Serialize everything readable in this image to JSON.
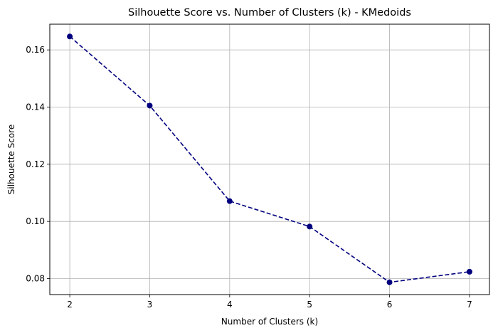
{
  "chart_data": {
    "type": "line",
    "title": "Silhouette Score vs. Number of Clusters (k) - KMedoids",
    "xlabel": "Number of Clusters (k)",
    "ylabel": "Silhouette Score",
    "x": [
      2,
      3,
      4,
      5,
      6,
      7
    ],
    "x_ticks": [
      "2",
      "3",
      "4",
      "5",
      "6",
      "7"
    ],
    "y_ticks": [
      "0.08",
      "0.10",
      "0.12",
      "0.14",
      "0.16"
    ],
    "y_tick_values": [
      0.08,
      0.1,
      0.12,
      0.14,
      0.16
    ],
    "series": [
      {
        "values": [
          0.1647,
          0.1405,
          0.1071,
          0.0982,
          0.0787,
          0.0824
        ]
      }
    ],
    "xlim": [
      1.75,
      7.25
    ],
    "ylim": [
      0.0744,
      0.169
    ],
    "grid": true,
    "line_style": "dashed",
    "marker": "circle",
    "color": "#00007f"
  }
}
